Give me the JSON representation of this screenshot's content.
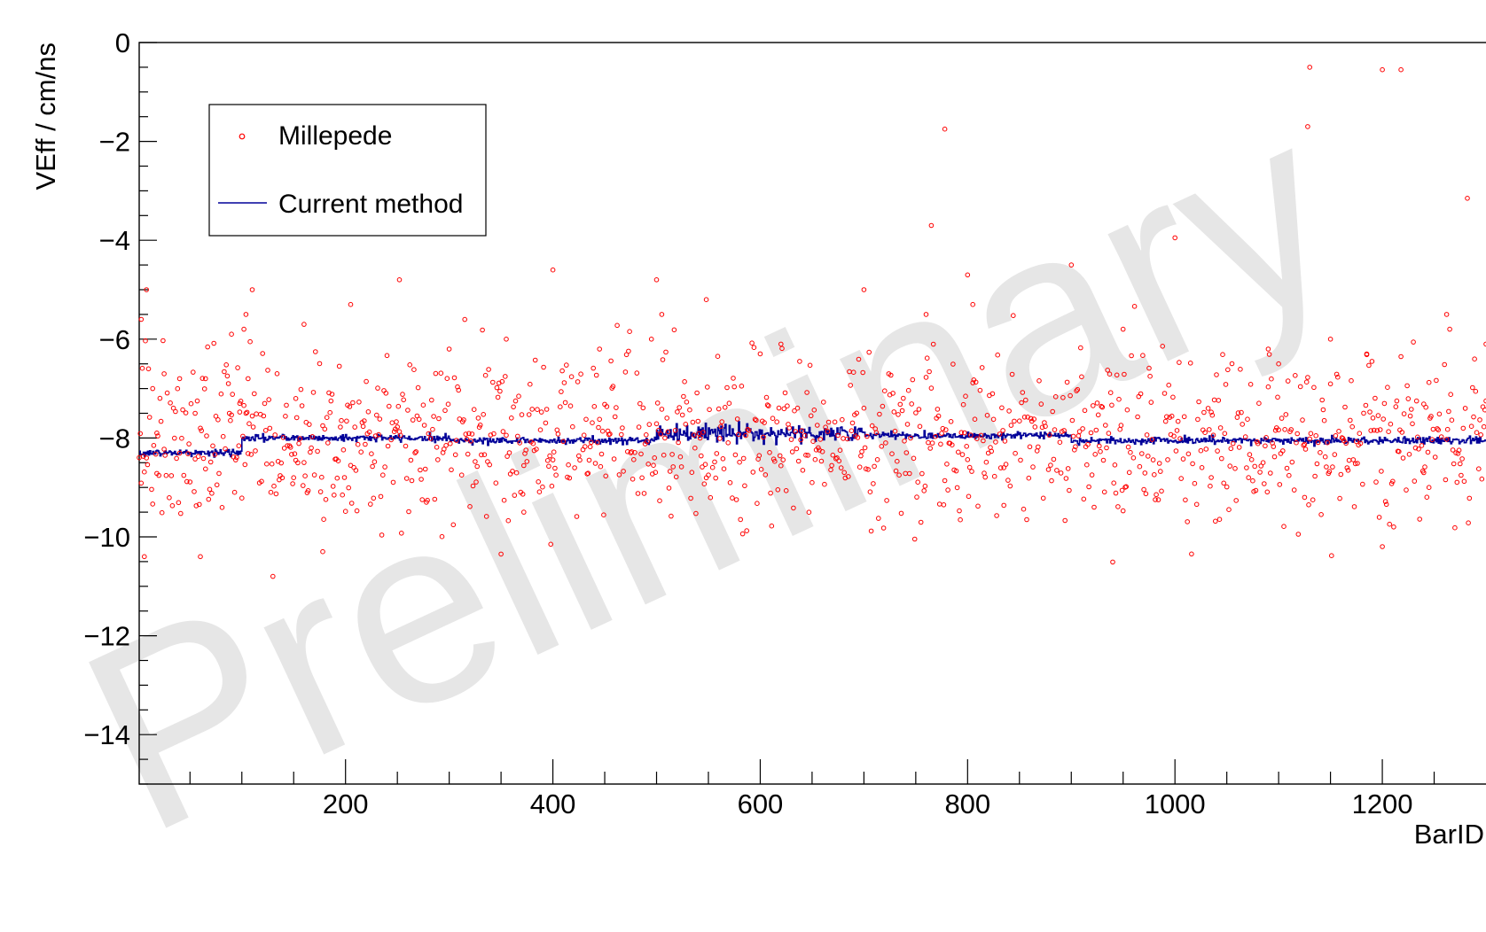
{
  "chart_data": {
    "type": "scatter",
    "title": "",
    "xlabel": "BarID",
    "ylabel": "VEff / cm/ns",
    "xlim": [
      1,
      1300
    ],
    "ylim": [
      -15,
      0
    ],
    "x_ticks": [
      200,
      400,
      600,
      800,
      1000,
      1200
    ],
    "x_tick_labels": [
      "200",
      "400",
      "600",
      "800",
      "1000",
      "1200"
    ],
    "y_ticks": [
      0,
      -2,
      -4,
      -6,
      -8,
      -10,
      -12,
      -14
    ],
    "y_tick_labels": [
      "0",
      "−2",
      "−4",
      "−6",
      "−8",
      "−10",
      "−12",
      "−14"
    ],
    "grid": false,
    "legend_position": "top-left",
    "watermark": "Preliminary",
    "series": [
      {
        "name": "Millepede",
        "kind": "markers",
        "color": "#ff0000",
        "marker": "open-circle",
        "scatter_center": -8.0,
        "scatter_sd": 0.85,
        "points": [
          [
            3,
            -5.6
          ],
          [
            6,
            -10.4
          ],
          [
            8,
            -5.0
          ],
          [
            10,
            -6.6
          ],
          [
            14,
            -7.0
          ],
          [
            18,
            -7.9
          ],
          [
            25,
            -6.7
          ],
          [
            40,
            -6.8
          ],
          [
            55,
            -7.5
          ],
          [
            60,
            -10.4
          ],
          [
            65,
            -6.8
          ],
          [
            90,
            -5.9
          ],
          [
            98,
            -7.3
          ],
          [
            102,
            -5.8
          ],
          [
            104,
            -5.5
          ],
          [
            106,
            -6.8
          ],
          [
            110,
            -5.0
          ],
          [
            130,
            -10.8
          ],
          [
            152,
            -7.2
          ],
          [
            160,
            -5.7
          ],
          [
            178,
            -10.3
          ],
          [
            205,
            -5.3
          ],
          [
            252,
            -4.8
          ],
          [
            300,
            -6.2
          ],
          [
            355,
            -6.0
          ],
          [
            372,
            -9.5
          ],
          [
            400,
            -4.6
          ],
          [
            445,
            -6.2
          ],
          [
            495,
            -6.0
          ],
          [
            500,
            -4.8
          ],
          [
            505,
            -5.5
          ],
          [
            548,
            -5.2
          ],
          [
            620,
            -6.1
          ],
          [
            700,
            -5.0
          ],
          [
            760,
            -5.5
          ],
          [
            765,
            -3.7
          ],
          [
            778,
            -1.75
          ],
          [
            800,
            -4.7
          ],
          [
            805,
            -5.3
          ],
          [
            835,
            -8.6
          ],
          [
            900,
            -4.5
          ],
          [
            950,
            -5.8
          ],
          [
            1000,
            -3.95
          ],
          [
            1035,
            -8.8
          ],
          [
            1090,
            -6.2
          ],
          [
            1100,
            -6.5
          ],
          [
            1125,
            -9.2
          ],
          [
            1128,
            -1.7
          ],
          [
            1130,
            -0.5
          ],
          [
            1150,
            -6.0
          ],
          [
            1185,
            -6.3
          ],
          [
            1200,
            -0.55
          ],
          [
            1218,
            -0.55
          ],
          [
            1240,
            -8.7
          ],
          [
            1245,
            -9.0
          ],
          [
            1262,
            -5.5
          ],
          [
            1265,
            -5.8
          ],
          [
            1282,
            -3.15
          ],
          [
            1300,
            -6.1
          ]
        ]
      },
      {
        "name": "Current method",
        "kind": "step-line",
        "color": "#000099",
        "segments": [
          {
            "from": 1,
            "to": 100,
            "value": -8.3
          },
          {
            "from": 100,
            "to": 300,
            "value": -8.0
          },
          {
            "from": 300,
            "to": 500,
            "value": -8.05
          },
          {
            "from": 500,
            "to": 700,
            "value": -7.9
          },
          {
            "from": 700,
            "to": 900,
            "value": -7.95
          },
          {
            "from": 900,
            "to": 1100,
            "value": -8.05
          },
          {
            "from": 1100,
            "to": 1300,
            "value": -8.05
          }
        ]
      }
    ]
  }
}
